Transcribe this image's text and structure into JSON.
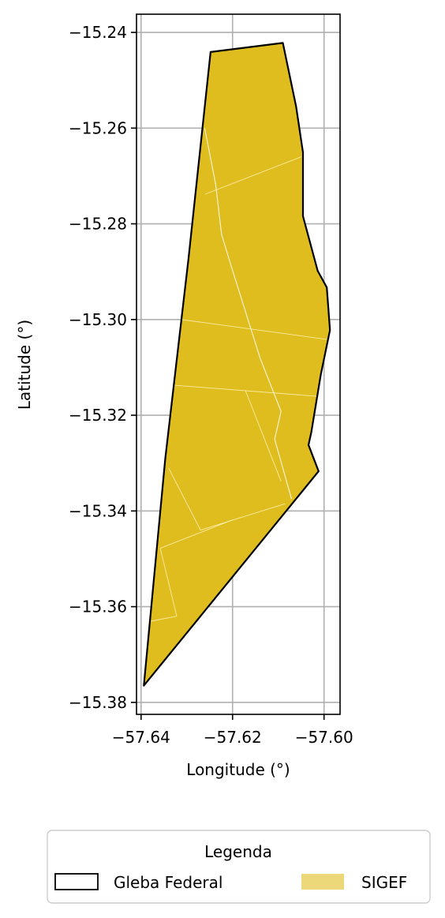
{
  "chart_data": {
    "type": "map",
    "title": "",
    "xlabel": "Longitude (°)",
    "ylabel": "Latitude (°)",
    "xlim": [
      -57.641,
      -57.5965
    ],
    "ylim": [
      -15.3825,
      -15.2362
    ],
    "x_ticks": [
      -57.64,
      -57.62,
      -57.6
    ],
    "x_tick_labels": [
      "−57.64",
      "−57.62",
      "−57.60"
    ],
    "y_ticks": [
      -15.24,
      -15.26,
      -15.28,
      -15.3,
      -15.32,
      -15.34,
      -15.36,
      -15.38
    ],
    "y_tick_labels": [
      "−15.24",
      "−15.26",
      "−15.28",
      "−15.30",
      "−15.32",
      "−15.34",
      "−15.36",
      "−15.38"
    ],
    "grid": true,
    "legend": {
      "title": "Legenda",
      "placement": "bottom",
      "entries": [
        {
          "label": "Gleba Federal",
          "style": "outline",
          "color": "#000000"
        },
        {
          "label": "SIGEF",
          "style": "fill",
          "color": "#e0bd1f"
        }
      ]
    },
    "series": [
      {
        "name": "Gleba Federal",
        "kind": "polygon",
        "stroke": "#000000",
        "coords": [
          [
            -57.6248,
            -15.2441
          ],
          [
            -57.609,
            -15.2422
          ],
          [
            -57.6061,
            -15.2555
          ],
          [
            -57.6046,
            -15.2651
          ],
          [
            -57.6046,
            -15.2784
          ],
          [
            -57.6014,
            -15.2898
          ],
          [
            -57.5994,
            -15.2933
          ],
          [
            -57.5987,
            -15.3022
          ],
          [
            -57.6007,
            -15.3115
          ],
          [
            -57.6028,
            -15.3236
          ],
          [
            -57.6034,
            -15.3262
          ],
          [
            -57.6012,
            -15.3317
          ],
          [
            -57.6394,
            -15.3765
          ],
          [
            -57.6347,
            -15.329
          ],
          [
            -57.6296,
            -15.287
          ]
        ]
      },
      {
        "name": "SIGEF",
        "kind": "polygon",
        "fill": "#e0bd1f",
        "coords": [
          [
            -57.6248,
            -15.2441
          ],
          [
            -57.609,
            -15.2422
          ],
          [
            -57.6061,
            -15.2555
          ],
          [
            -57.6046,
            -15.2651
          ],
          [
            -57.6046,
            -15.2784
          ],
          [
            -57.6014,
            -15.2898
          ],
          [
            -57.5994,
            -15.2933
          ],
          [
            -57.5987,
            -15.3022
          ],
          [
            -57.6007,
            -15.3115
          ],
          [
            -57.6028,
            -15.3236
          ],
          [
            -57.6034,
            -15.3262
          ],
          [
            -57.6012,
            -15.3317
          ],
          [
            -57.6394,
            -15.3765
          ],
          [
            -57.6347,
            -15.329
          ],
          [
            -57.6296,
            -15.287
          ]
        ]
      }
    ],
    "parcel_lines": [
      {
        "color": "#ffffff",
        "coords": [
          [
            -57.6261,
            -15.26
          ],
          [
            -57.6237,
            -15.2717
          ],
          [
            -57.6224,
            -15.2822
          ],
          [
            -57.6204,
            -15.2885
          ],
          [
            -57.614,
            -15.308
          ],
          [
            -57.6094,
            -15.3192
          ],
          [
            -57.6108,
            -15.325
          ],
          [
            -57.6071,
            -15.3375
          ]
        ]
      },
      {
        "color": "#ffffff",
        "coords": [
          [
            -57.6049,
            -15.2601
          ],
          [
            -57.6046,
            -15.2651
          ]
        ]
      },
      {
        "color": "#ffffff",
        "coords": [
          [
            -57.6022,
            -15.286
          ],
          [
            -57.6028,
            -15.284
          ],
          [
            -57.6036,
            -15.2812
          ],
          [
            -57.6046,
            -15.2784
          ]
        ]
      },
      {
        "color": "#fff3b8",
        "coords": [
          [
            -57.626,
            -15.2738
          ],
          [
            -57.605,
            -15.266
          ]
        ]
      },
      {
        "color": "#fff3b8",
        "coords": [
          [
            -57.6312,
            -15.3
          ],
          [
            -57.599,
            -15.3042
          ]
        ]
      },
      {
        "color": "#fff3b8",
        "coords": [
          [
            -57.633,
            -15.3137
          ],
          [
            -57.6007,
            -15.3161
          ]
        ]
      },
      {
        "color": "#fff3b8",
        "coords": [
          [
            -57.6172,
            -15.3148
          ],
          [
            -57.6094,
            -15.3338
          ]
        ]
      },
      {
        "color": "#fff3b8",
        "coords": [
          [
            -57.634,
            -15.331
          ],
          [
            -57.627,
            -15.344
          ],
          [
            -57.6085,
            -15.3385
          ]
        ]
      },
      {
        "color": "#fff3b8",
        "coords": [
          [
            -57.6358,
            -15.3478
          ],
          [
            -57.6198,
            -15.3418
          ]
        ]
      },
      {
        "color": "#fff3b8",
        "coords": [
          [
            -57.6358,
            -15.3478
          ],
          [
            -57.6322,
            -15.362
          ]
        ]
      },
      {
        "color": "#fff3b8",
        "coords": [
          [
            -57.6388,
            -15.3632
          ],
          [
            -57.6322,
            -15.362
          ]
        ]
      }
    ]
  }
}
